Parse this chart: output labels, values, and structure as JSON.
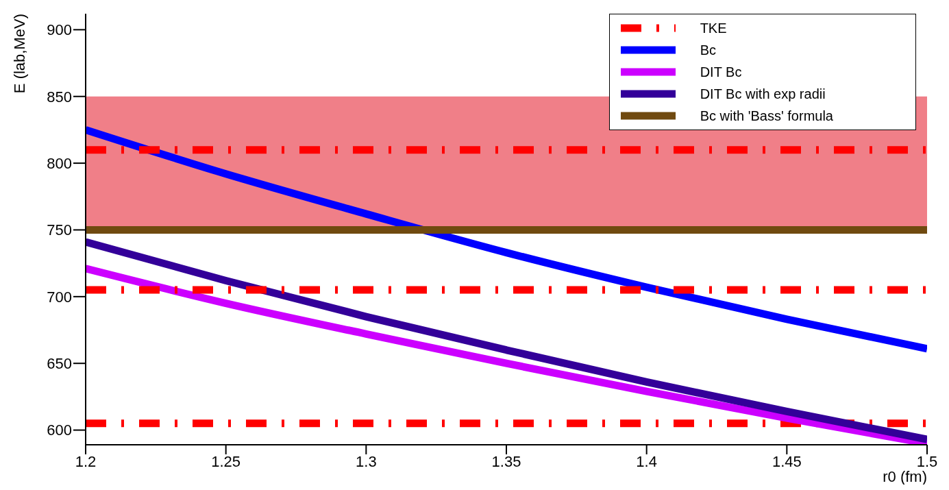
{
  "chart_data": {
    "type": "line",
    "xlabel": "r0 (fm)",
    "ylabel": "E (lab,MeV)",
    "xlim": [
      1.2,
      1.5
    ],
    "xticks": [
      1.2,
      1.25,
      1.3,
      1.35,
      1.4,
      1.45,
      1.5
    ],
    "ylim": [
      589,
      912
    ],
    "yticks": [
      600,
      650,
      700,
      750,
      800,
      850,
      900
    ],
    "legend": "top right",
    "bands": [
      {
        "axis": "y",
        "from": 748,
        "to": 850,
        "color": "#f07f88"
      }
    ],
    "series": [
      {
        "name": "TKE",
        "color": "#ff0000",
        "line_style": "dashed",
        "x": [
          1.2,
          1.5
        ],
        "values": [
          605,
          605
        ]
      },
      {
        "name": "Bc",
        "color": "#0000ff",
        "x": [
          1.2,
          1.25,
          1.3,
          1.35,
          1.4,
          1.45,
          1.5
        ],
        "values": [
          825,
          792,
          762,
          733,
          707,
          683,
          661
        ]
      },
      {
        "name": "DIT Bc",
        "color": "#cc00ff",
        "x": [
          1.2,
          1.25,
          1.3,
          1.35,
          1.4,
          1.45,
          1.5
        ],
        "values": [
          721,
          695,
          672,
          650,
          629,
          609,
          590
        ]
      },
      {
        "name": "DIT Bc with exp radii",
        "color": "#330099",
        "x": [
          1.2,
          1.25,
          1.3,
          1.35,
          1.4,
          1.45,
          1.5
        ],
        "values": [
          741,
          712,
          685,
          660,
          636,
          614,
          593
        ]
      },
      {
        "name": "Bc with 'Bass' formula",
        "color": "#704a10",
        "x": [
          1.2,
          1.5
        ],
        "values": [
          750,
          750
        ]
      },
      {
        "color": "#ff0000",
        "line_style": "dashed",
        "x": [
          1.2,
          1.5
        ],
        "values": [
          705,
          705
        ]
      },
      {
        "color": "#ff0000",
        "line_style": "dashed",
        "x": [
          1.2,
          1.5
        ],
        "values": [
          810,
          810
        ]
      }
    ]
  }
}
